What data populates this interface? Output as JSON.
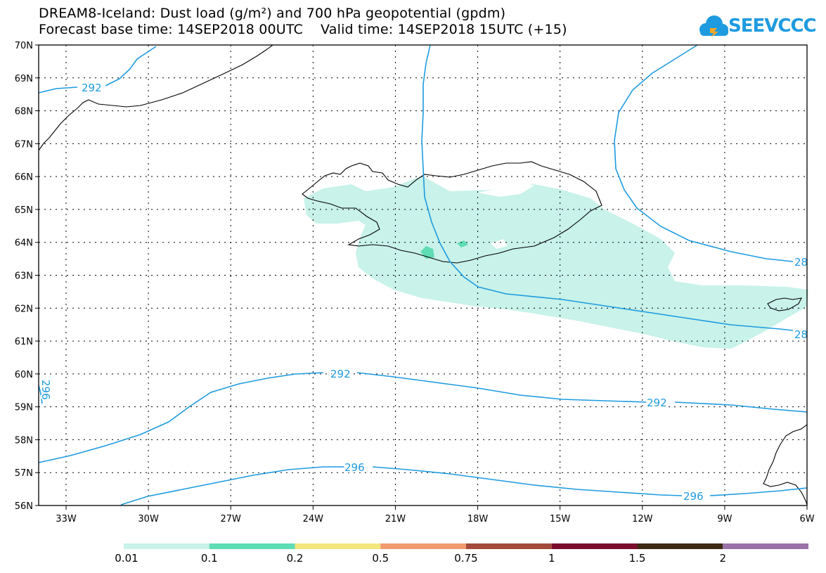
{
  "title_line1": "DREAM8-Iceland: Dust load (g/m²) and 700 hPa geopotential (gpdm)",
  "title_line2": "Forecast base time: 14SEP2018 00UTC    Valid time: 14SEP2018 15UTC (+15)",
  "logo_text": "SEEVCCC",
  "lat_labels": [
    "70N",
    "69N",
    "68N",
    "67N",
    "66N",
    "65N",
    "64N",
    "63N",
    "62N",
    "61N",
    "60N",
    "59N",
    "58N",
    "57N",
    "56N"
  ],
  "lon_labels": [
    "33W",
    "30W",
    "27W",
    "24W",
    "21W",
    "18W",
    "15W",
    "12W",
    "9W",
    "6W"
  ],
  "contour_labels": [
    "292",
    "292",
    "292",
    "296",
    "296",
    "28",
    "28",
    "296"
  ],
  "colorbar": {
    "colors": [
      "#c8f2ea",
      "#5edcb4",
      "#f4e67e",
      "#f09a6e",
      "#a44a3a",
      "#7a0c2e",
      "#3e2a14",
      "#9a72a8"
    ],
    "tick_labels": [
      "0.01",
      "0.1",
      "0.2",
      "0.5",
      "0.75",
      "1",
      "1.5",
      "2"
    ]
  },
  "colors": {
    "dust_light": "#c8f2ea",
    "dust_medium": "#5edcb4",
    "contour": "#1e9be0"
  }
}
